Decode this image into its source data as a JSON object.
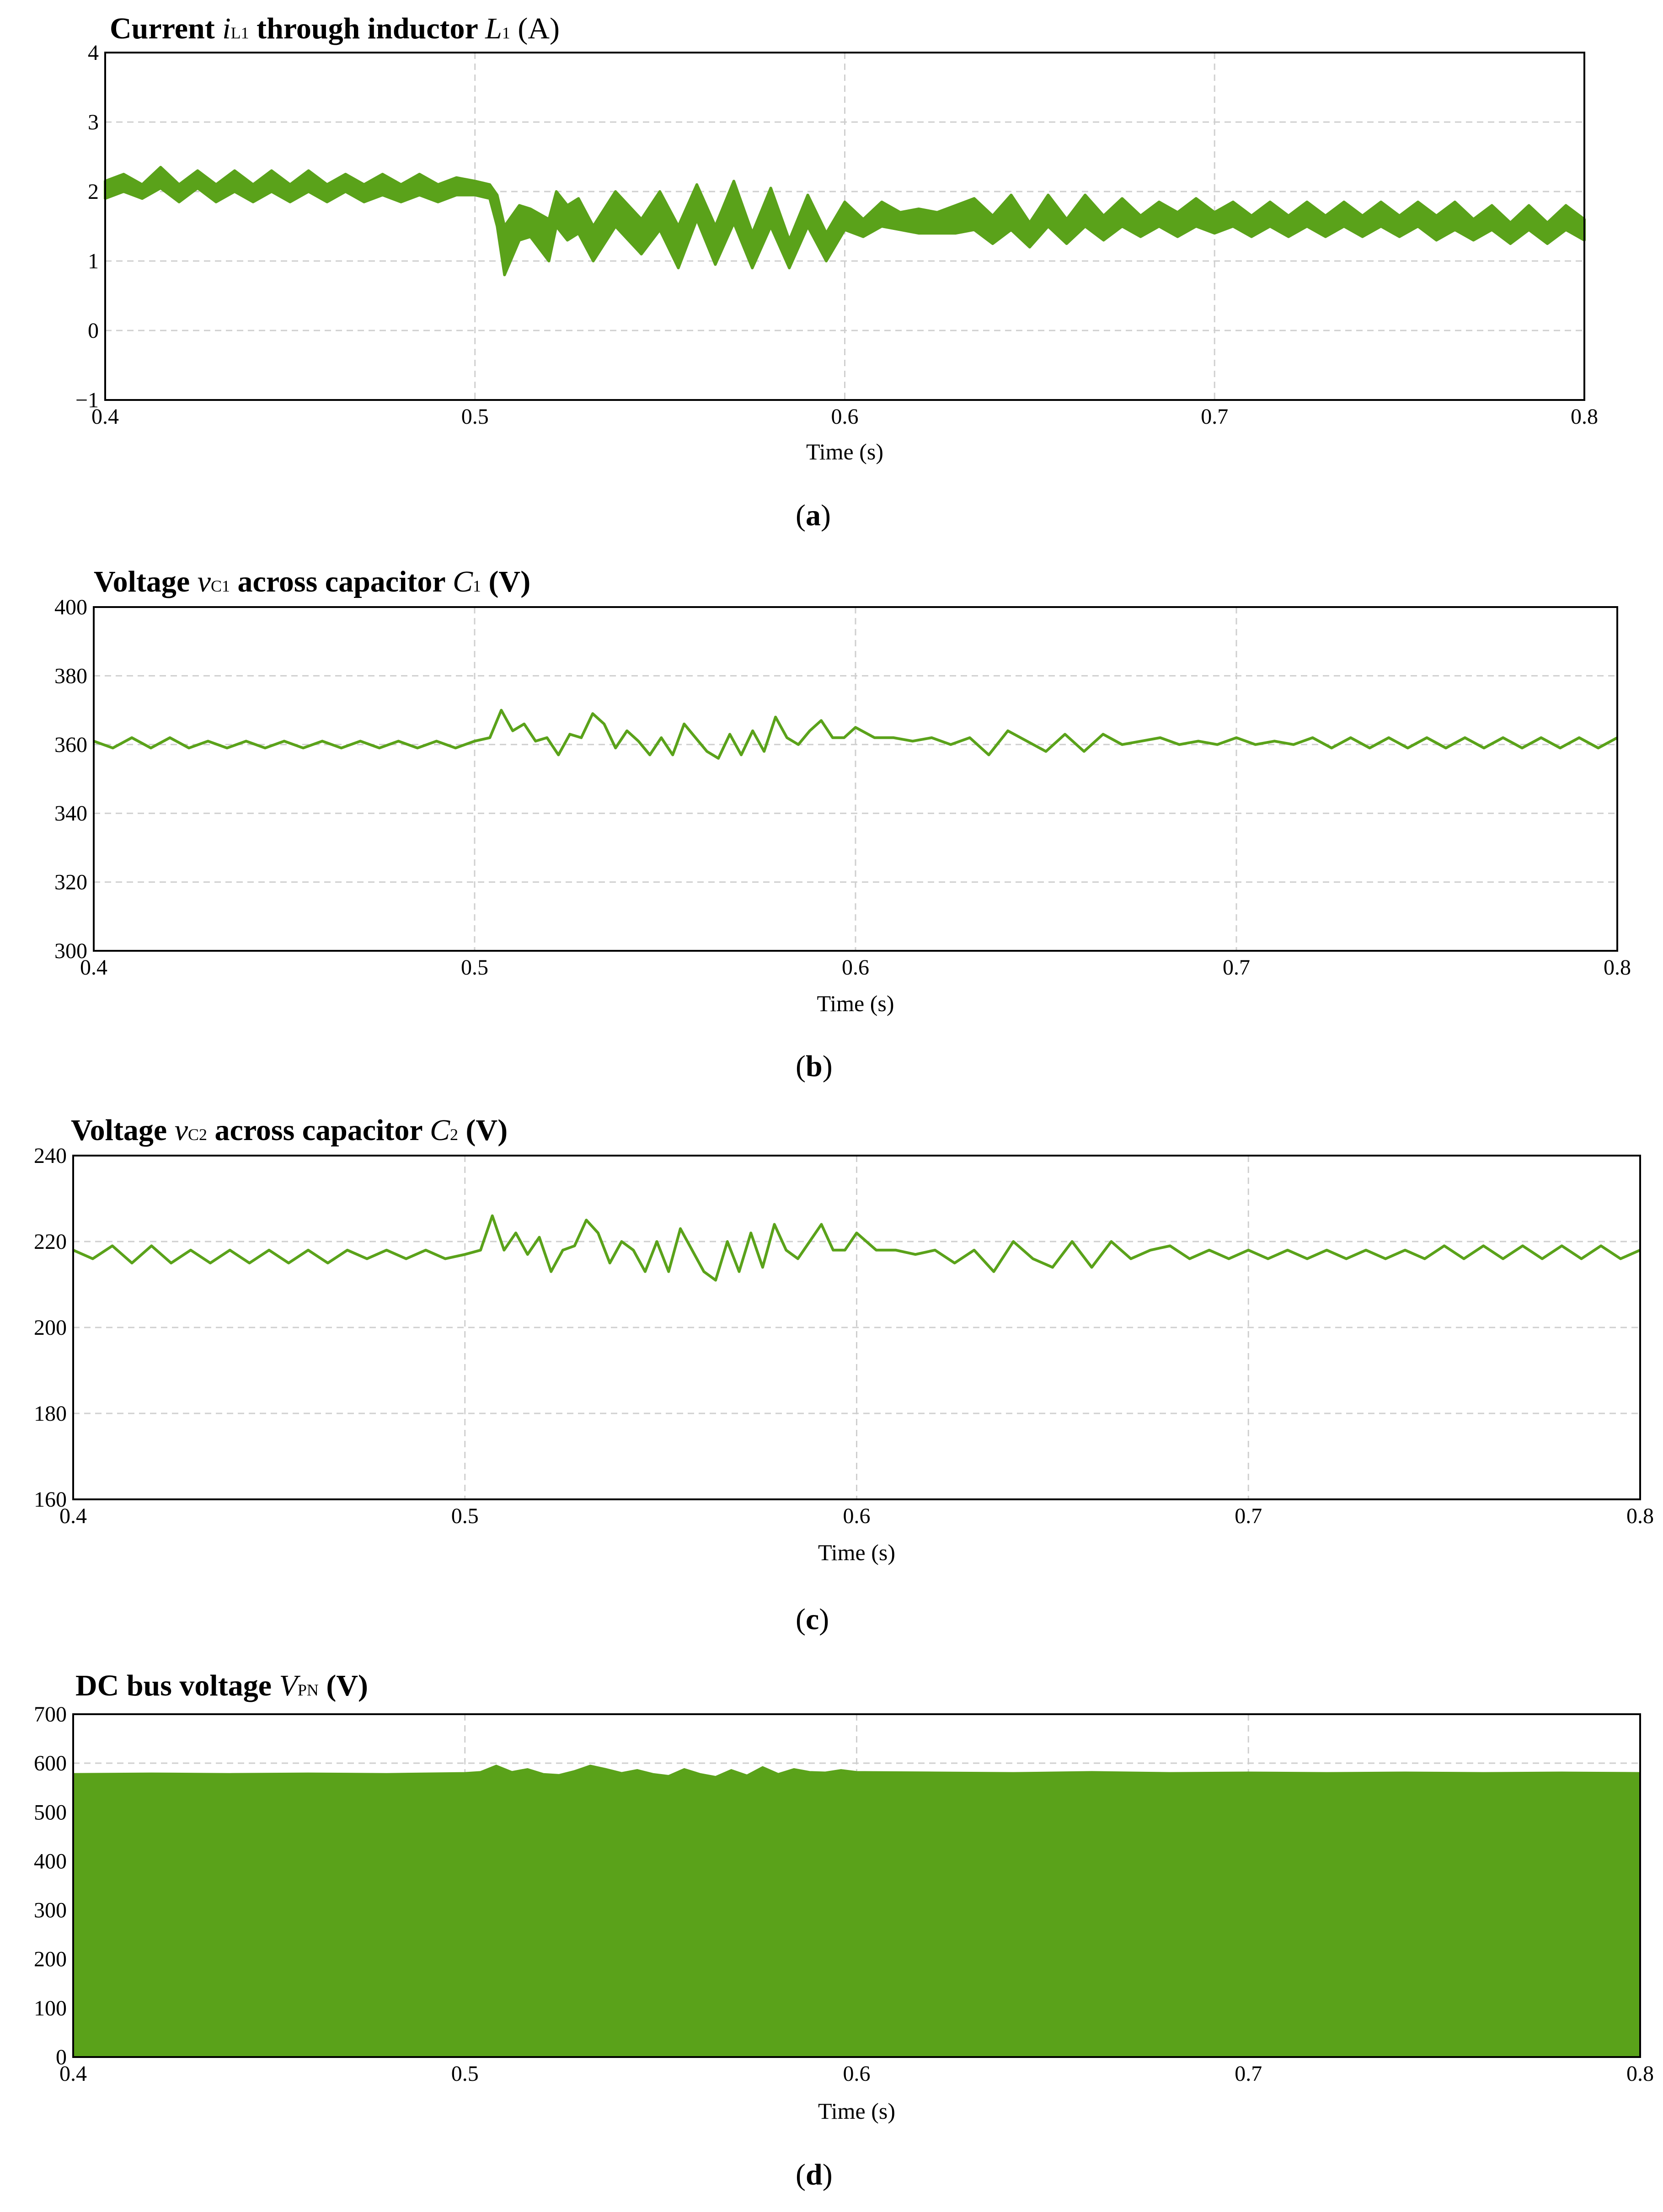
{
  "chart_data": [
    {
      "id": "a",
      "type": "line",
      "title": {
        "prefix": "Current ",
        "var": "i",
        "var_sub": "L1",
        "mid": " through inductor ",
        "elem": "L",
        "elem_sub": "1",
        "unit": " (A)"
      },
      "xlabel": "Time (s)",
      "xlim": [
        0.4,
        0.8
      ],
      "ylim": [
        -1,
        4
      ],
      "xticks": [
        0.4,
        0.5,
        0.6,
        0.7,
        0.8
      ],
      "yticks": [
        -1,
        0,
        1,
        2,
        3,
        4
      ],
      "grid": true,
      "color": "#5aa21a",
      "series": [
        {
          "kind": "band",
          "x": [
            0.4,
            0.405,
            0.41,
            0.415,
            0.42,
            0.425,
            0.43,
            0.435,
            0.44,
            0.445,
            0.45,
            0.455,
            0.46,
            0.465,
            0.47,
            0.475,
            0.48,
            0.485,
            0.49,
            0.495,
            0.5,
            0.504,
            0.506,
            0.508,
            0.512,
            0.515,
            0.52,
            0.522,
            0.525,
            0.528,
            0.532,
            0.538,
            0.545,
            0.55,
            0.555,
            0.56,
            0.565,
            0.57,
            0.575,
            0.58,
            0.585,
            0.59,
            0.595,
            0.6,
            0.605,
            0.61,
            0.615,
            0.62,
            0.625,
            0.63,
            0.635,
            0.64,
            0.645,
            0.65,
            0.655,
            0.66,
            0.665,
            0.67,
            0.675,
            0.68,
            0.685,
            0.69,
            0.695,
            0.7,
            0.705,
            0.71,
            0.715,
            0.72,
            0.725,
            0.73,
            0.735,
            0.74,
            0.745,
            0.75,
            0.755,
            0.76,
            0.765,
            0.77,
            0.775,
            0.78,
            0.785,
            0.79,
            0.795,
            0.8
          ],
          "high": [
            2.15,
            2.25,
            2.1,
            2.35,
            2.1,
            2.3,
            2.1,
            2.3,
            2.1,
            2.3,
            2.1,
            2.3,
            2.1,
            2.25,
            2.1,
            2.25,
            2.1,
            2.25,
            2.1,
            2.2,
            2.15,
            2.1,
            1.95,
            1.5,
            1.8,
            1.75,
            1.6,
            2.0,
            1.8,
            1.9,
            1.5,
            2.0,
            1.6,
            2.0,
            1.5,
            2.1,
            1.5,
            2.15,
            1.4,
            2.05,
            1.3,
            1.95,
            1.4,
            1.85,
            1.6,
            1.85,
            1.7,
            1.75,
            1.7,
            1.8,
            1.9,
            1.65,
            1.95,
            1.55,
            1.95,
            1.6,
            1.95,
            1.65,
            1.9,
            1.65,
            1.85,
            1.7,
            1.9,
            1.7,
            1.85,
            1.65,
            1.85,
            1.65,
            1.85,
            1.65,
            1.85,
            1.65,
            1.85,
            1.65,
            1.85,
            1.65,
            1.85,
            1.6,
            1.8,
            1.55,
            1.8,
            1.55,
            1.8,
            1.6
          ],
          "low": [
            1.9,
            2.0,
            1.9,
            2.05,
            1.85,
            2.05,
            1.85,
            2.0,
            1.85,
            2.0,
            1.85,
            2.0,
            1.85,
            2.0,
            1.85,
            1.95,
            1.85,
            1.95,
            1.85,
            1.95,
            1.95,
            1.9,
            1.5,
            0.8,
            1.3,
            1.35,
            1.0,
            1.5,
            1.3,
            1.4,
            1.0,
            1.5,
            1.1,
            1.45,
            0.9,
            1.6,
            0.95,
            1.55,
            0.9,
            1.5,
            0.9,
            1.5,
            1.0,
            1.45,
            1.35,
            1.5,
            1.45,
            1.4,
            1.4,
            1.4,
            1.45,
            1.25,
            1.45,
            1.2,
            1.5,
            1.25,
            1.5,
            1.3,
            1.5,
            1.35,
            1.5,
            1.35,
            1.5,
            1.4,
            1.5,
            1.35,
            1.5,
            1.35,
            1.5,
            1.35,
            1.5,
            1.35,
            1.5,
            1.35,
            1.5,
            1.3,
            1.45,
            1.3,
            1.45,
            1.25,
            1.45,
            1.25,
            1.45,
            1.3
          ]
        }
      ],
      "caption": "a"
    },
    {
      "id": "b",
      "type": "line",
      "title": {
        "prefix": "Voltage ",
        "var": "v",
        "var_sub": "C1",
        "mid": " across capacitor ",
        "elem": "C",
        "elem_sub": "1",
        "unit": " (V)"
      },
      "xlabel": "Time (s)",
      "xlim": [
        0.4,
        0.8
      ],
      "ylim": [
        300,
        400
      ],
      "xticks": [
        0.4,
        0.5,
        0.6,
        0.7,
        0.8
      ],
      "yticks": [
        300,
        320,
        340,
        360,
        380,
        400
      ],
      "grid": true,
      "color": "#5aa21a",
      "series": [
        {
          "kind": "line",
          "x": [
            0.4,
            0.405,
            0.41,
            0.415,
            0.42,
            0.425,
            0.43,
            0.435,
            0.44,
            0.445,
            0.45,
            0.455,
            0.46,
            0.465,
            0.47,
            0.475,
            0.48,
            0.485,
            0.49,
            0.495,
            0.5,
            0.504,
            0.507,
            0.51,
            0.513,
            0.516,
            0.519,
            0.522,
            0.525,
            0.528,
            0.531,
            0.534,
            0.537,
            0.54,
            0.543,
            0.546,
            0.549,
            0.552,
            0.555,
            0.558,
            0.561,
            0.564,
            0.567,
            0.57,
            0.573,
            0.576,
            0.579,
            0.582,
            0.585,
            0.588,
            0.591,
            0.594,
            0.597,
            0.6,
            0.605,
            0.61,
            0.615,
            0.62,
            0.625,
            0.63,
            0.635,
            0.64,
            0.645,
            0.65,
            0.655,
            0.66,
            0.665,
            0.67,
            0.675,
            0.68,
            0.685,
            0.69,
            0.695,
            0.7,
            0.705,
            0.71,
            0.715,
            0.72,
            0.725,
            0.73,
            0.735,
            0.74,
            0.745,
            0.75,
            0.755,
            0.76,
            0.765,
            0.77,
            0.775,
            0.78,
            0.785,
            0.79,
            0.795,
            0.8
          ],
          "y": [
            361,
            359,
            362,
            359,
            362,
            359,
            361,
            359,
            361,
            359,
            361,
            359,
            361,
            359,
            361,
            359,
            361,
            359,
            361,
            359,
            361,
            362,
            370,
            364,
            366,
            361,
            362,
            357,
            363,
            362,
            369,
            366,
            359,
            364,
            361,
            357,
            362,
            357,
            366,
            362,
            358,
            356,
            363,
            357,
            364,
            358,
            368,
            362,
            360,
            364,
            367,
            362,
            362,
            365,
            362,
            362,
            361,
            362,
            360,
            362,
            357,
            364,
            361,
            358,
            363,
            358,
            363,
            360,
            361,
            362,
            360,
            361,
            360,
            362,
            360,
            361,
            360,
            362,
            359,
            362,
            359,
            362,
            359,
            362,
            359,
            362,
            359,
            362,
            359,
            362,
            359,
            362,
            359,
            362
          ]
        }
      ],
      "caption": "b"
    },
    {
      "id": "c",
      "type": "line",
      "title": {
        "prefix": "Voltage ",
        "var": "v",
        "var_sub": "C2",
        "mid": " across capacitor ",
        "elem": "C",
        "elem_sub": "2",
        "unit": " (V)"
      },
      "xlabel": "Time (s)",
      "xlim": [
        0.4,
        0.8
      ],
      "ylim": [
        160,
        240
      ],
      "xticks": [
        0.4,
        0.5,
        0.6,
        0.7,
        0.8
      ],
      "yticks": [
        160,
        180,
        200,
        220,
        240
      ],
      "grid": true,
      "color": "#5aa21a",
      "series": [
        {
          "kind": "line",
          "x": [
            0.4,
            0.405,
            0.41,
            0.415,
            0.42,
            0.425,
            0.43,
            0.435,
            0.44,
            0.445,
            0.45,
            0.455,
            0.46,
            0.465,
            0.47,
            0.475,
            0.48,
            0.485,
            0.49,
            0.495,
            0.5,
            0.504,
            0.507,
            0.51,
            0.513,
            0.516,
            0.519,
            0.522,
            0.525,
            0.528,
            0.531,
            0.534,
            0.537,
            0.54,
            0.543,
            0.546,
            0.549,
            0.552,
            0.555,
            0.558,
            0.561,
            0.564,
            0.567,
            0.57,
            0.573,
            0.576,
            0.579,
            0.582,
            0.585,
            0.588,
            0.591,
            0.594,
            0.597,
            0.6,
            0.605,
            0.61,
            0.615,
            0.62,
            0.625,
            0.63,
            0.635,
            0.64,
            0.645,
            0.65,
            0.655,
            0.66,
            0.665,
            0.67,
            0.675,
            0.68,
            0.685,
            0.69,
            0.695,
            0.7,
            0.705,
            0.71,
            0.715,
            0.72,
            0.725,
            0.73,
            0.735,
            0.74,
            0.745,
            0.75,
            0.755,
            0.76,
            0.765,
            0.77,
            0.775,
            0.78,
            0.785,
            0.79,
            0.795,
            0.8
          ],
          "y": [
            218,
            216,
            219,
            215,
            219,
            215,
            218,
            215,
            218,
            215,
            218,
            215,
            218,
            215,
            218,
            216,
            218,
            216,
            218,
            216,
            217,
            218,
            226,
            218,
            222,
            217,
            221,
            213,
            218,
            219,
            225,
            222,
            215,
            220,
            218,
            213,
            220,
            213,
            223,
            218,
            213,
            211,
            220,
            213,
            222,
            214,
            224,
            218,
            216,
            220,
            224,
            218,
            218,
            222,
            218,
            218,
            217,
            218,
            215,
            218,
            213,
            220,
            216,
            214,
            220,
            214,
            220,
            216,
            218,
            219,
            216,
            218,
            216,
            218,
            216,
            218,
            216,
            218,
            216,
            218,
            216,
            218,
            216,
            219,
            216,
            219,
            216,
            219,
            216,
            219,
            216,
            219,
            216,
            218
          ]
        }
      ],
      "caption": "c"
    },
    {
      "id": "d",
      "type": "area",
      "title": {
        "prefix": "DC bus voltage ",
        "var": "V",
        "var_sub": "PN",
        "mid": "",
        "elem": "",
        "elem_sub": "",
        "unit": " (V)"
      },
      "xlabel": "Time (s)",
      "xlim": [
        0.4,
        0.8
      ],
      "ylim": [
        0,
        700
      ],
      "xticks": [
        0.4,
        0.5,
        0.6,
        0.7,
        0.8
      ],
      "yticks": [
        0,
        100,
        200,
        300,
        400,
        500,
        600,
        700
      ],
      "grid": true,
      "color": "#5aa21a",
      "series": [
        {
          "kind": "area",
          "x": [
            0.4,
            0.42,
            0.44,
            0.46,
            0.48,
            0.5,
            0.504,
            0.508,
            0.512,
            0.516,
            0.52,
            0.524,
            0.528,
            0.532,
            0.536,
            0.54,
            0.544,
            0.548,
            0.552,
            0.556,
            0.56,
            0.564,
            0.568,
            0.572,
            0.576,
            0.58,
            0.584,
            0.588,
            0.592,
            0.596,
            0.6,
            0.62,
            0.64,
            0.66,
            0.68,
            0.7,
            0.72,
            0.74,
            0.76,
            0.78,
            0.8
          ],
          "y": [
            578,
            579,
            578,
            579,
            578,
            580,
            582,
            595,
            582,
            588,
            578,
            576,
            584,
            595,
            588,
            580,
            586,
            578,
            574,
            588,
            578,
            572,
            586,
            575,
            592,
            578,
            588,
            582,
            581,
            586,
            582,
            581,
            580,
            582,
            580,
            581,
            580,
            581,
            580,
            581,
            580
          ]
        }
      ],
      "caption": "d"
    }
  ]
}
